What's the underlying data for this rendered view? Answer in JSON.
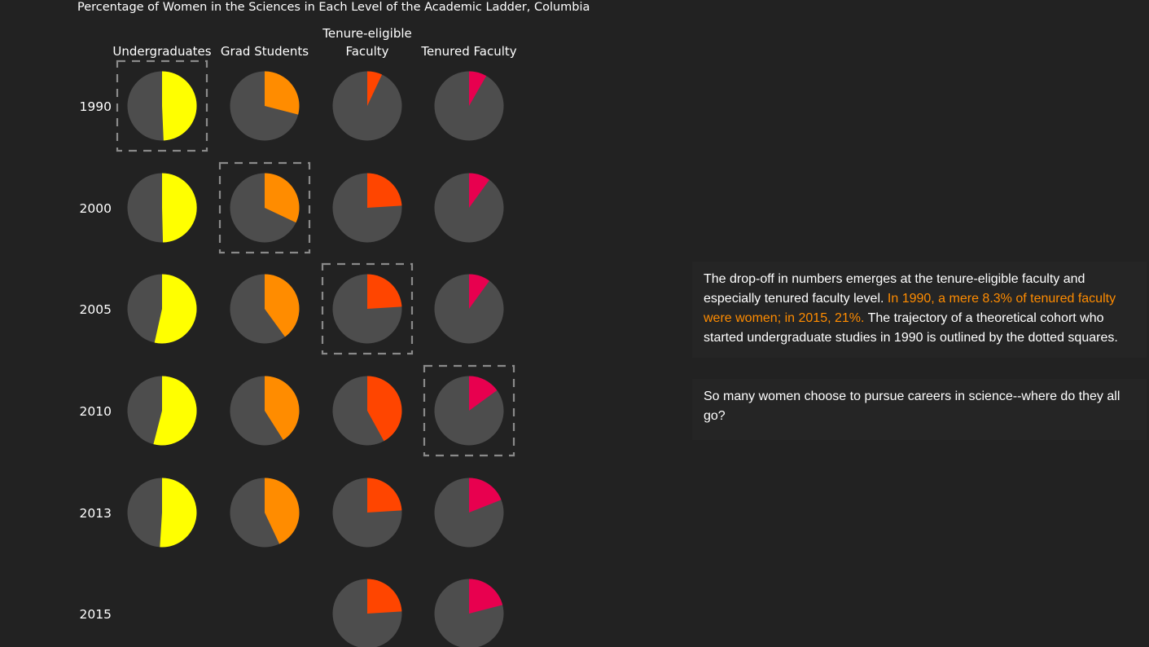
{
  "colors": {
    "background": "#222222",
    "pie_base": "#4d4d4d",
    "undergraduates": "#ffff00",
    "grad_students": "#ff8c00",
    "tenure_eligible": "#ff4500",
    "tenured": "#e8004f",
    "highlight_text": "#ff8c00",
    "cohort_box": "#8a8a8a"
  },
  "chart_data": {
    "type": "pie",
    "title": "Percentage of Women in the Sciences in Each Level of the Academic Ladder, Columbia",
    "columns": [
      {
        "key": "undergraduates",
        "label": "Undergraduates"
      },
      {
        "key": "grad_students",
        "label": "Grad Students"
      },
      {
        "key": "tenure_eligible",
        "label": "Tenure-eligible Faculty"
      },
      {
        "key": "tenured",
        "label": "Tenured Faculty"
      }
    ],
    "years": [
      "1990",
      "2000",
      "2005",
      "2010",
      "2013",
      "2015"
    ],
    "series": [
      {
        "name": "Undergraduates",
        "values": [
          49.3,
          49.6,
          53.5,
          54,
          51,
          null
        ]
      },
      {
        "name": "Grad Students",
        "values": [
          29,
          32,
          40,
          41,
          43,
          null
        ]
      },
      {
        "name": "Tenure-eligible Faculty",
        "values": [
          7,
          24,
          24,
          42,
          24,
          24
        ]
      },
      {
        "name": "Tenured Faculty",
        "values": [
          8.3,
          10,
          10,
          15,
          19,
          21
        ]
      }
    ],
    "cohort_outline": [
      {
        "year": "1990",
        "column": "Undergraduates"
      },
      {
        "year": "2000",
        "column": "Grad Students"
      },
      {
        "year": "2005",
        "column": "Tenure-eligible Faculty"
      },
      {
        "year": "2010",
        "column": "Tenured Faculty"
      }
    ]
  },
  "chart": {
    "header_tenure_line1": "Tenure-eligible",
    "header_tenure_line2": "Faculty"
  },
  "story": {
    "p1_pre": "The drop-off in numbers emerges at the tenure-eligible faculty and especially tenured faculty level.",
    "p1_highlight": "In 1990, a mere 8.3% of tenured faculty were women; in 2015, 21%.",
    "p1_post": "The trajectory of a theoretical cohort who started undergraduate studies in 1990 is outlined by the dotted squares.",
    "p2": "So many women choose to pursue careers in science--where do they all go?"
  }
}
